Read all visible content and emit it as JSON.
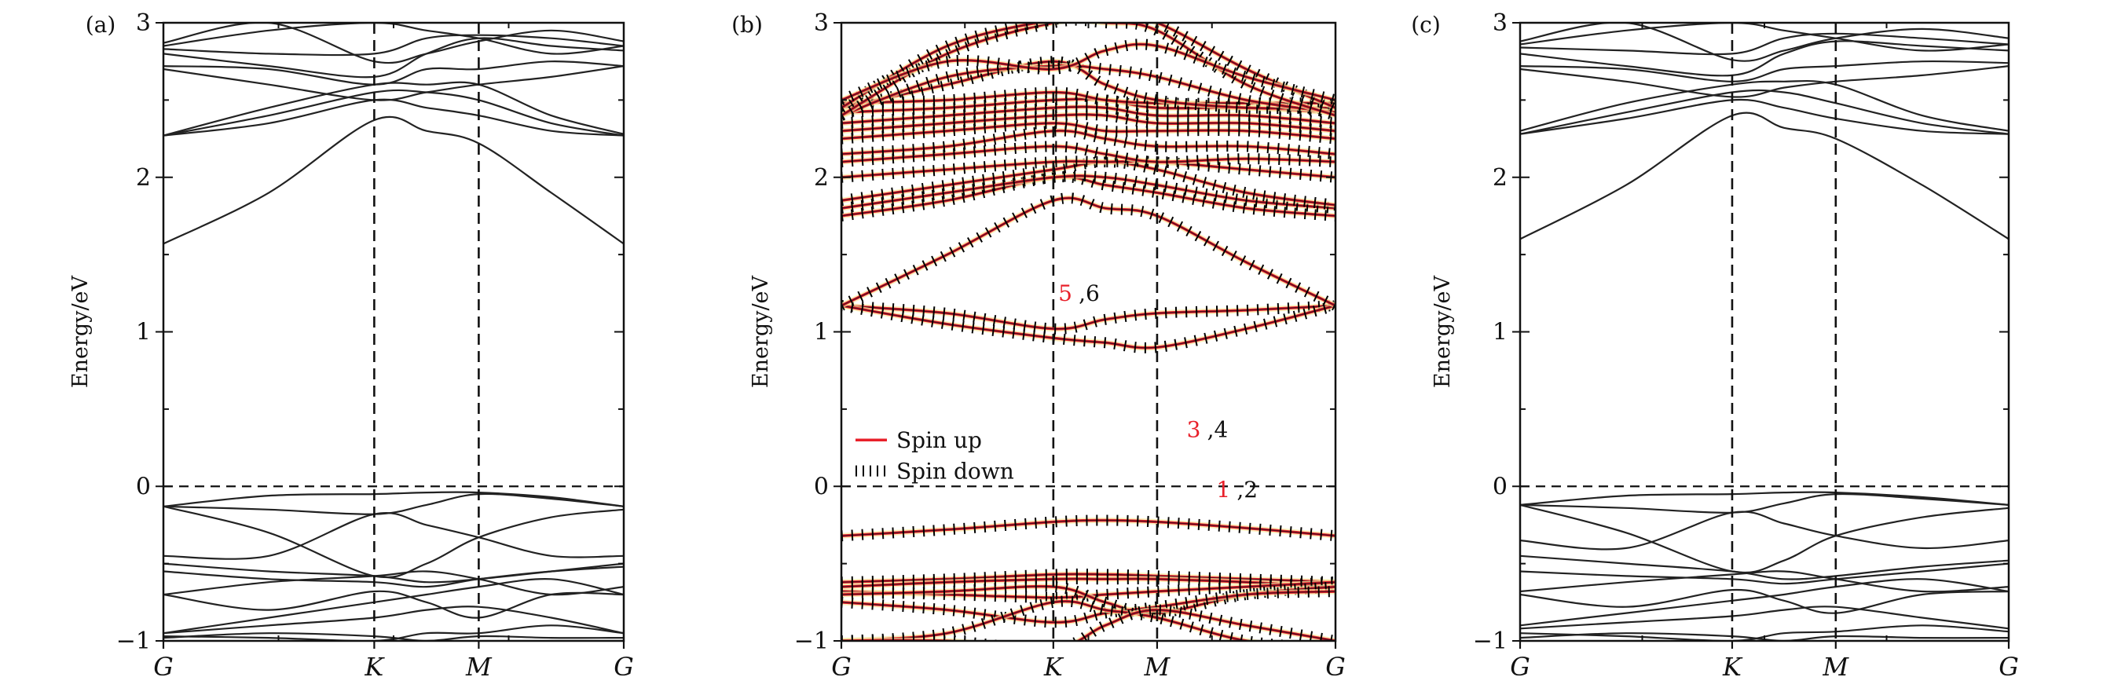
{
  "chart_data": [
    {
      "type": "line",
      "panel_label": "(a)",
      "ylabel": "Energy/eV",
      "ylim": [
        -1,
        3
      ],
      "yticks": [
        "−1",
        "0",
        "1",
        "2",
        "3"
      ],
      "xticks": [
        "G",
        "K",
        "M",
        "G"
      ],
      "kpath": [
        0,
        0.458,
        0.685,
        1
      ],
      "fermi_level": 0,
      "line_color": "#222222",
      "bands": [
        [
          1.57,
          1.9,
          2.37,
          2.3,
          2.22,
          1.9,
          1.57
        ],
        [
          2.27,
          2.35,
          2.5,
          2.45,
          2.4,
          2.3,
          2.27
        ],
        [
          2.27,
          2.4,
          2.55,
          2.55,
          2.5,
          2.35,
          2.27
        ],
        [
          2.27,
          2.45,
          2.6,
          2.6,
          2.6,
          2.4,
          2.28
        ],
        [
          2.7,
          2.6,
          2.5,
          2.55,
          2.6,
          2.65,
          2.72
        ],
        [
          2.72,
          2.7,
          2.6,
          2.7,
          2.7,
          2.75,
          2.72
        ],
        [
          2.8,
          2.72,
          2.65,
          2.8,
          2.9,
          2.85,
          2.82
        ],
        [
          2.83,
          2.8,
          2.8,
          2.9,
          2.92,
          2.9,
          2.85
        ],
        [
          2.85,
          2.95,
          3.0,
          2.95,
          2.9,
          2.8,
          2.85
        ],
        [
          2.87,
          3.0,
          2.75,
          2.8,
          2.88,
          2.95,
          2.88
        ],
        [
          -0.13,
          -0.06,
          -0.05,
          -0.04,
          -0.04,
          -0.07,
          -0.13
        ],
        [
          -0.13,
          -0.15,
          -0.18,
          -0.12,
          -0.05,
          -0.08,
          -0.13
        ],
        [
          -0.13,
          -0.3,
          -0.58,
          -0.5,
          -0.33,
          -0.2,
          -0.15
        ],
        [
          -0.45,
          -0.45,
          -0.18,
          -0.25,
          -0.33,
          -0.45,
          -0.45
        ],
        [
          -0.5,
          -0.55,
          -0.58,
          -0.62,
          -0.6,
          -0.55,
          -0.5
        ],
        [
          -0.55,
          -0.6,
          -0.62,
          -0.65,
          -0.6,
          -0.55,
          -0.52
        ],
        [
          -0.7,
          -0.62,
          -0.58,
          -0.55,
          -0.6,
          -0.7,
          -0.65
        ],
        [
          -0.7,
          -0.8,
          -0.68,
          -0.75,
          -0.85,
          -0.7,
          -0.7
        ],
        [
          -0.95,
          -0.85,
          -0.75,
          -0.7,
          -0.65,
          -0.6,
          -0.7
        ],
        [
          -0.95,
          -0.9,
          -0.85,
          -0.8,
          -0.78,
          -0.85,
          -0.95
        ],
        [
          -0.97,
          -0.98,
          -1.0,
          -0.95,
          -0.95,
          -0.9,
          -0.95
        ],
        [
          -0.98,
          -0.95,
          -0.97,
          -1.0,
          -0.97,
          -0.98,
          -0.98
        ]
      ]
    },
    {
      "type": "line",
      "panel_label": "(b)",
      "ylabel": "Energy/eV",
      "ylim": [
        -1,
        3
      ],
      "yticks": [
        "−1",
        "0",
        "1",
        "2",
        "3"
      ],
      "xticks": [
        "G",
        "K",
        "M",
        "G"
      ],
      "kpath": [
        0,
        0.429,
        0.639,
        1
      ],
      "fermi_level": 0,
      "legend": "center-left",
      "series": [
        {
          "name": "Spin up",
          "color": "#e8202a"
        },
        {
          "name": "Spin down",
          "color": "#000000"
        }
      ],
      "band_labels": [
        {
          "red": "5",
          "black": ",6"
        },
        {
          "red": "3",
          "black": ",4"
        },
        {
          "red": "1",
          "black": ",2"
        }
      ],
      "bands": [
        [
          1.17,
          1.12,
          1.02,
          1.08,
          1.12,
          1.14,
          1.17
        ],
        [
          1.17,
          1.05,
          0.96,
          0.93,
          0.9,
          1.02,
          1.17
        ],
        [
          1.17,
          1.5,
          1.85,
          1.8,
          1.75,
          1.45,
          1.17
        ],
        [
          1.75,
          1.85,
          2.0,
          1.95,
          1.9,
          1.8,
          1.75
        ],
        [
          1.8,
          1.9,
          2.0,
          2.0,
          1.95,
          1.85,
          1.8
        ],
        [
          1.85,
          1.95,
          2.05,
          2.1,
          2.05,
          1.9,
          1.82
        ],
        [
          2.0,
          2.05,
          2.1,
          2.1,
          2.1,
          2.05,
          2.0
        ],
        [
          2.1,
          2.15,
          2.2,
          2.15,
          2.1,
          2.12,
          2.1
        ],
        [
          2.15,
          2.2,
          2.3,
          2.25,
          2.2,
          2.2,
          2.15
        ],
        [
          2.25,
          2.3,
          2.35,
          2.3,
          2.3,
          2.3,
          2.25
        ],
        [
          2.3,
          2.35,
          2.4,
          2.4,
          2.35,
          2.35,
          2.3
        ],
        [
          2.35,
          2.4,
          2.45,
          2.45,
          2.4,
          2.4,
          2.35
        ],
        [
          2.42,
          2.45,
          2.5,
          2.5,
          2.45,
          2.45,
          2.42
        ],
        [
          2.48,
          2.5,
          2.55,
          2.5,
          2.48,
          2.48,
          2.48
        ],
        [
          2.45,
          2.6,
          2.75,
          2.6,
          2.5,
          2.45,
          2.45
        ],
        [
          2.4,
          2.65,
          2.72,
          2.7,
          2.65,
          2.5,
          2.42
        ],
        [
          2.4,
          2.8,
          3.0,
          3.0,
          2.95,
          2.6,
          2.4
        ],
        [
          2.45,
          2.85,
          3.02,
          3.05,
          3.0,
          2.7,
          2.45
        ],
        [
          2.5,
          2.75,
          2.7,
          2.82,
          2.85,
          2.65,
          2.5
        ],
        [
          -0.32,
          -0.28,
          -0.23,
          -0.22,
          -0.23,
          -0.27,
          -0.32
        ],
        [
          -0.62,
          -0.6,
          -0.57,
          -0.57,
          -0.58,
          -0.6,
          -0.62
        ],
        [
          -0.65,
          -0.62,
          -0.6,
          -0.6,
          -0.6,
          -0.62,
          -0.65
        ],
        [
          -0.68,
          -0.7,
          -0.72,
          -0.7,
          -0.68,
          -0.65,
          -0.62
        ],
        [
          -0.7,
          -0.68,
          -0.65,
          -0.75,
          -0.82,
          -0.7,
          -0.65
        ],
        [
          -0.75,
          -0.8,
          -0.88,
          -0.82,
          -0.78,
          -0.7,
          -0.68
        ],
        [
          -1.0,
          -0.95,
          -0.75,
          -0.8,
          -0.85,
          -1.0,
          -1.05
        ],
        [
          -1.0,
          -1.0,
          -1.05,
          -0.9,
          -0.8,
          -0.9,
          -1.0
        ]
      ]
    },
    {
      "type": "line",
      "panel_label": "(c)",
      "ylabel": "Energy/eV",
      "ylim": [
        -1,
        3
      ],
      "yticks": [
        "−1",
        "0",
        "1",
        "2",
        "3"
      ],
      "xticks": [
        "G",
        "K",
        "M",
        "G"
      ],
      "kpath": [
        0,
        0.434,
        0.646,
        1
      ],
      "fermi_level": 0,
      "line_color": "#222222",
      "bands": [
        [
          1.6,
          1.95,
          2.4,
          2.32,
          2.25,
          1.95,
          1.6
        ],
        [
          2.28,
          2.38,
          2.5,
          2.45,
          2.38,
          2.3,
          2.28
        ],
        [
          2.28,
          2.42,
          2.55,
          2.55,
          2.48,
          2.35,
          2.28
        ],
        [
          2.3,
          2.48,
          2.6,
          2.62,
          2.6,
          2.4,
          2.3
        ],
        [
          2.7,
          2.62,
          2.52,
          2.58,
          2.62,
          2.66,
          2.72
        ],
        [
          2.72,
          2.7,
          2.62,
          2.7,
          2.72,
          2.75,
          2.74
        ],
        [
          2.8,
          2.72,
          2.66,
          2.8,
          2.88,
          2.85,
          2.82
        ],
        [
          2.84,
          2.82,
          2.8,
          2.9,
          2.93,
          2.9,
          2.86
        ],
        [
          2.86,
          2.95,
          3.0,
          2.95,
          2.9,
          2.82,
          2.86
        ],
        [
          2.88,
          3.0,
          2.76,
          2.82,
          2.9,
          2.96,
          2.9
        ],
        [
          -0.12,
          -0.06,
          -0.05,
          -0.04,
          -0.04,
          -0.07,
          -0.12
        ],
        [
          -0.12,
          -0.14,
          -0.17,
          -0.11,
          -0.05,
          -0.08,
          -0.12
        ],
        [
          -0.12,
          -0.3,
          -0.55,
          -0.48,
          -0.32,
          -0.2,
          -0.14
        ],
        [
          -0.35,
          -0.4,
          -0.17,
          -0.24,
          -0.32,
          -0.4,
          -0.35
        ],
        [
          -0.45,
          -0.5,
          -0.55,
          -0.6,
          -0.58,
          -0.52,
          -0.48
        ],
        [
          -0.55,
          -0.58,
          -0.6,
          -0.63,
          -0.6,
          -0.55,
          -0.5
        ],
        [
          -0.68,
          -0.62,
          -0.57,
          -0.55,
          -0.6,
          -0.68,
          -0.65
        ],
        [
          -0.7,
          -0.78,
          -0.67,
          -0.74,
          -0.82,
          -0.7,
          -0.68
        ],
        [
          -0.9,
          -0.82,
          -0.74,
          -0.7,
          -0.65,
          -0.6,
          -0.68
        ],
        [
          -0.92,
          -0.88,
          -0.84,
          -0.8,
          -0.78,
          -0.85,
          -0.92
        ],
        [
          -0.95,
          -0.97,
          -1.0,
          -0.95,
          -0.94,
          -0.9,
          -0.94
        ],
        [
          -0.98,
          -0.95,
          -0.97,
          -1.0,
          -0.97,
          -0.98,
          -0.98
        ]
      ]
    }
  ]
}
